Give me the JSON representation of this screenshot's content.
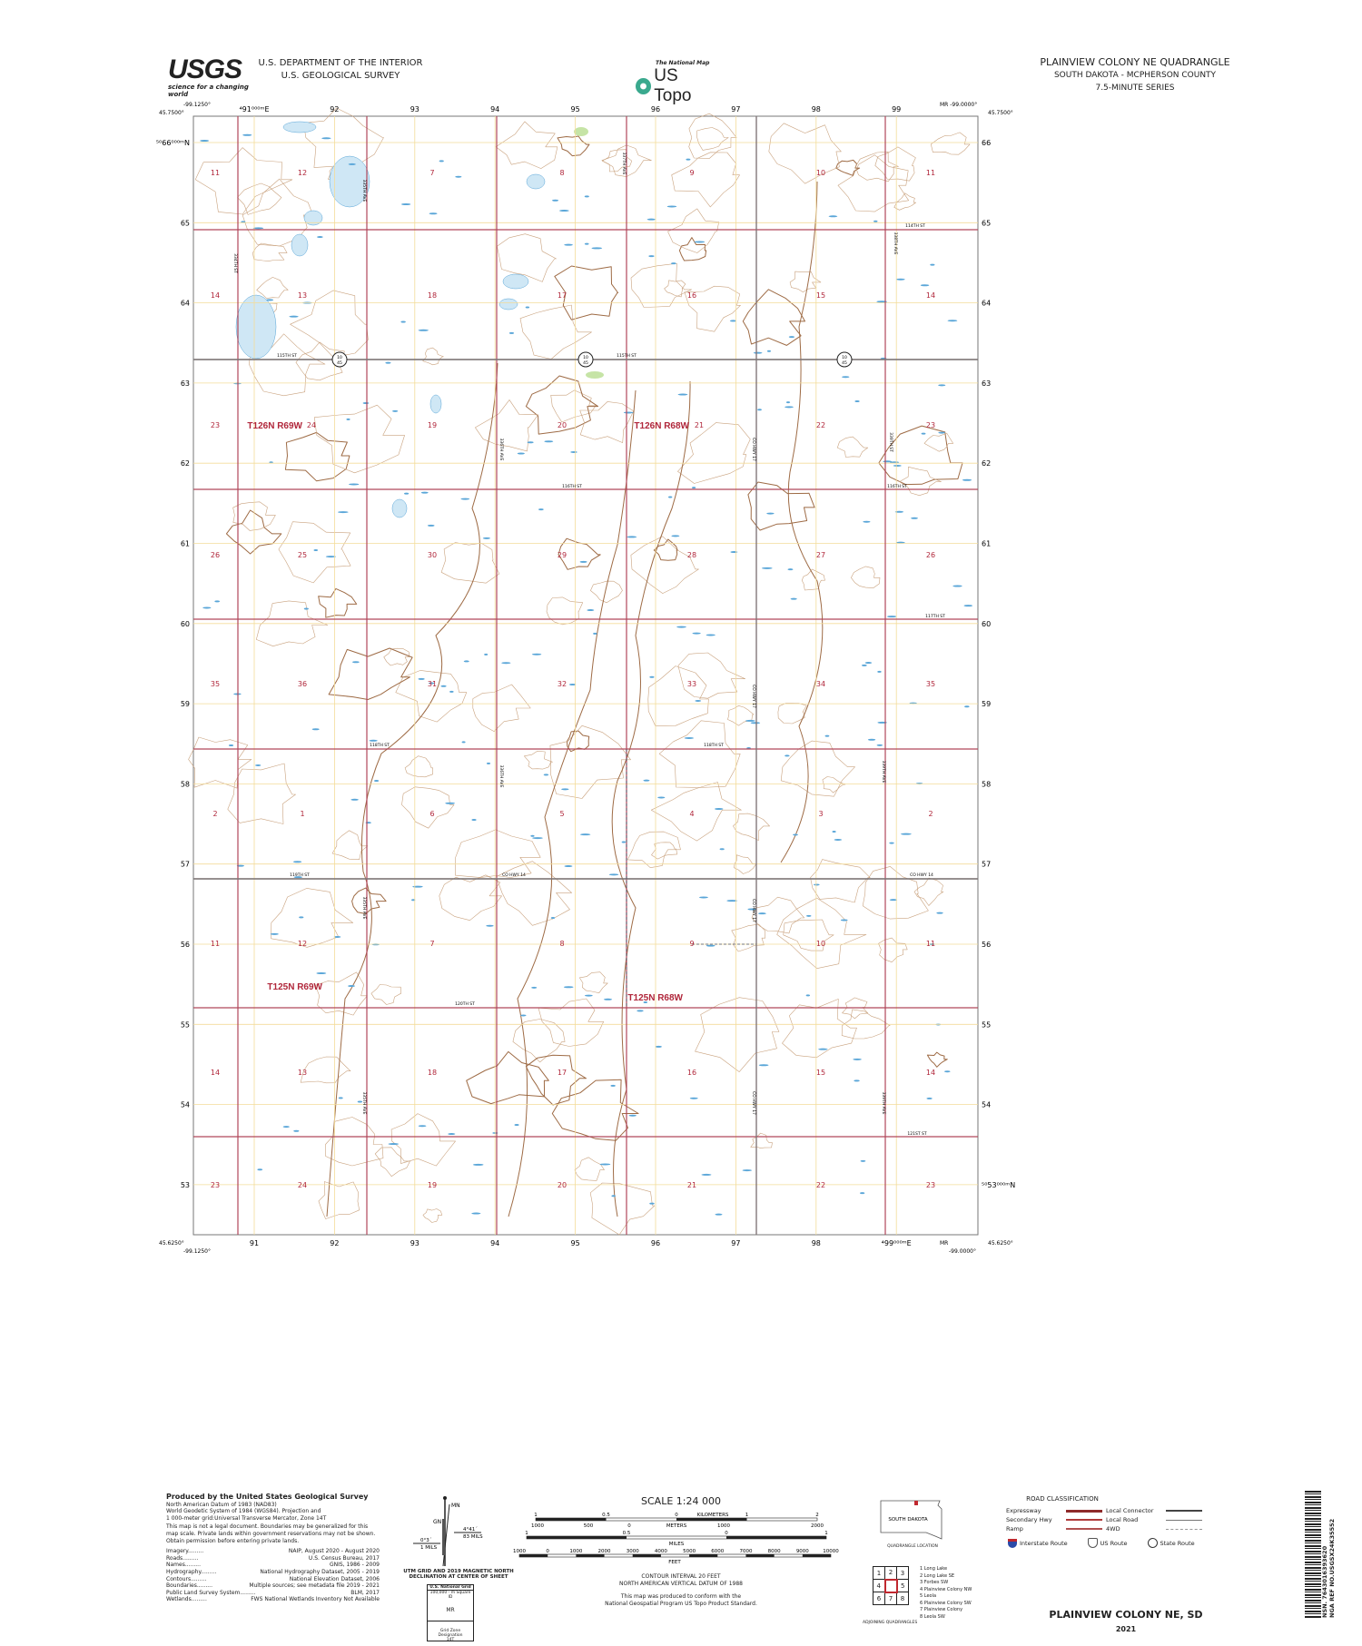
{
  "header": {
    "agency_logo": "USGS",
    "agency_tagline": "science for a changing world",
    "dept_line1": "U.S. DEPARTMENT OF THE INTERIOR",
    "dept_line2": "U.S. GEOLOGICAL SURVEY",
    "product_small": "The National Map",
    "product_name": "US Topo",
    "quad_title": "PLAINVIEW COLONY NE QUADRANGLE",
    "quad_state_county": "SOUTH DAKOTA - MCPHERSON COUNTY",
    "quad_series": "7.5-MINUTE SERIES"
  },
  "colors": {
    "section_line": "#b0475a",
    "utm_grid": "#f3dc9a",
    "contour": "#c9a27e",
    "index_contour": "#9e6b45",
    "water": "#cfe7f5",
    "water_edge": "#5aa6d8",
    "road": "#7a7a7a",
    "label_red": "#b0263a",
    "vegetation": "#c6e4a6"
  },
  "corners": {
    "tl_lon": "-99.1250°",
    "tl_lat": "45.7500°",
    "tr_lon": "MR -99.0000°",
    "tr_lat": "45.7500°",
    "bl_lat": "45.6250°",
    "bl_lon": "-99.1250°",
    "br_mr": "MR",
    "br_lon": "-99.0000°",
    "br_lat": "45.6250°"
  },
  "grid_labels": {
    "top": [
      "⁴91⁰⁰⁰ᵐE",
      "92",
      "93",
      "94",
      "95",
      "96",
      "97",
      "98",
      "99"
    ],
    "bottom": [
      "91",
      "92",
      "93",
      "94",
      "95",
      "96",
      "97",
      "98",
      "⁴99⁰⁰⁰ᵐE"
    ],
    "left": [
      "⁵⁰66⁰⁰⁰ᵐN",
      "65",
      "64",
      "63",
      "62",
      "61",
      "60",
      "59",
      "58",
      "57",
      "56",
      "55",
      "54",
      "53"
    ],
    "right": [
      "66",
      "65",
      "64",
      "63",
      "62",
      "61",
      "60",
      "59",
      "58",
      "57",
      "56",
      "55",
      "54",
      "⁵⁰53⁰⁰⁰ᵐN"
    ]
  },
  "sections": [
    [
      "11",
      "12",
      "7",
      "8",
      "9",
      "10",
      "11"
    ],
    [
      "14",
      "13",
      "18",
      "17",
      "16",
      "15",
      "14"
    ],
    [
      "23",
      "24",
      "19",
      "20",
      "21",
      "22",
      "23"
    ],
    [
      "26",
      "25",
      "30",
      "29",
      "28",
      "27",
      "26"
    ],
    [
      "35",
      "36",
      "31",
      "32",
      "33",
      "34",
      "35"
    ],
    [
      "2",
      "1",
      "6",
      "5",
      "4",
      "3",
      "2"
    ],
    [
      "11",
      "12",
      "7",
      "8",
      "9",
      "10",
      "11"
    ],
    [
      "14",
      "13",
      "18",
      "17",
      "16",
      "15",
      "14"
    ],
    [
      "23",
      "24",
      "19",
      "20",
      "21",
      "22",
      "23"
    ]
  ],
  "townships": [
    "T126N R69W",
    "T126N R68W",
    "T125N R69W",
    "T125N R68W"
  ],
  "roads": [
    "114TH ST",
    "334TH ST",
    "335TH AVE",
    "337TH AVE",
    "338TH AVE",
    "115TH ST",
    "115TH ST",
    "116TH ST",
    "116TH ST",
    "336TH AVE",
    "CO HWY 17",
    "339TH ST",
    "117TH ST",
    "118TH ST",
    "118TH ST",
    "CO HWY 17",
    "339TH AVE",
    "336TH AVE",
    "119TH ST",
    "CO HWY 14",
    "CO HWY 14",
    "335TH AVE",
    "CO HWY 17",
    "120TH ST",
    "335TH AVE",
    "CO HWY 17",
    "339TH AVE",
    "121ST ST"
  ],
  "route_shields": [
    [
      "10",
      "45"
    ],
    [
      "10",
      "45"
    ],
    [
      "10",
      "45"
    ]
  ],
  "footer": {
    "produced_by": "Produced by the United States Geological Survey",
    "notes": [
      "North American Datum of 1983 (NAD83)",
      "World Geodetic System of 1984 (WGS84). Projection and",
      "1 000-meter grid:Universal Transverse Mercator, Zone 14T",
      "This map is not a legal document. Boundaries may be generalized for this map scale. Private lands within government reservations may not be shown. Obtain permission before entering private lands."
    ],
    "sources": [
      [
        "Imagery",
        "NAIP, August 2020 - August 2020"
      ],
      [
        "Roads",
        "U.S. Census Bureau, 2017"
      ],
      [
        "Names",
        "GNIS, 1986 - 2009"
      ],
      [
        "Hydrography",
        "National Hydrography Dataset, 2005 - 2019"
      ],
      [
        "Contours",
        "National Elevation Dataset, 2006"
      ],
      [
        "Boundaries",
        "Multiple sources; see metadata file 2019 - 2021"
      ],
      [
        "Public Land Survey System",
        "BLM, 2017"
      ],
      [
        "Wetlands",
        "FWS National Wetlands Inventory Not Available"
      ]
    ],
    "declination": {
      "mn": "MN",
      "gn": "GN",
      "mn_angle": "4°41´",
      "mn_mils": "83 MILS",
      "gn_angle": "0°3´",
      "gn_mils": "1 MILS",
      "caption": "UTM GRID AND 2019 MAGNETIC NORTH DECLINATION AT CENTER OF SHEET"
    },
    "usng": {
      "title": "U.S. National Grid",
      "sub": "100,000 - m Square ID",
      "square": "MR",
      "gzd_label": "Grid Zone Designation",
      "gzd": "14T"
    },
    "scale": {
      "title": "SCALE 1:24 000",
      "km_ticks": [
        "1",
        "0.5",
        "0",
        "1",
        "2"
      ],
      "km_label": "KILOMETERS",
      "m_ticks": [
        "1000",
        "500",
        "0",
        "1000",
        "2000"
      ],
      "m_label": "METERS",
      "mi_ticks": [
        "1",
        "0.5",
        "0",
        "1"
      ],
      "mi_label": "MILES",
      "ft_ticks": [
        "1000",
        "0",
        "1000",
        "2000",
        "3000",
        "4000",
        "5000",
        "6000",
        "7000",
        "8000",
        "9000",
        "10000"
      ],
      "ft_label": "FEET"
    },
    "contour_interval": "CONTOUR INTERVAL 20 FEET",
    "vertical_datum": "NORTH AMERICAN VERTICAL DATUM OF 1988",
    "standard_note1": "This map was produced to conform with the",
    "standard_note2": "National Geospatial Program US Topo Product Standard.",
    "quad_location_state": "SOUTH DAKOTA",
    "quad_location_caption": "QUADRANGLE LOCATION",
    "adjoining": [
      "1 Long Lake",
      "2 Long Lake SE",
      "3 Forbes SW",
      "4 Plainview Colony NW",
      "5 Leola",
      "6 Plainview Colony SW",
      "7 Plainview Colony",
      "8 Leola SW"
    ],
    "adjoining_grid": [
      "1",
      "2",
      "3",
      "4",
      "",
      "5",
      "6",
      "7",
      "8"
    ],
    "adjoining_caption": "ADJOINING QUADRANGLES",
    "road_class_title": "ROAD CLASSIFICATION",
    "road_class": [
      "Expressway",
      "Secondary Hwy",
      "Ramp",
      "Local Connector",
      "Local Road",
      "4WD"
    ],
    "route_types": [
      "Interstate Route",
      "US Route",
      "State Route"
    ],
    "sheet_title": "PLAINVIEW COLONY NE,  SD",
    "year": "2021",
    "barcode_text": "NSN. 7643016393620",
    "nga_ref": "NGA REF NO.USGSX24K35552"
  }
}
